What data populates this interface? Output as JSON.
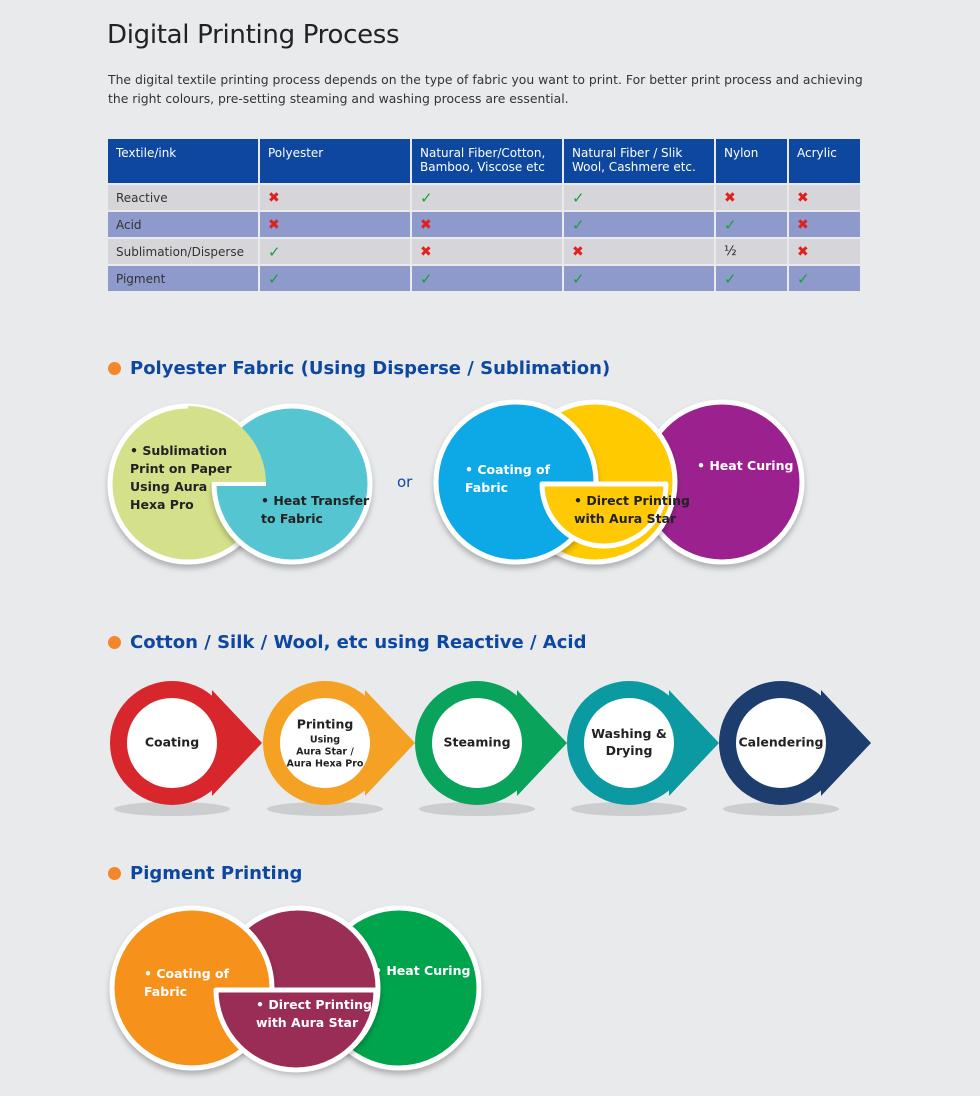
{
  "title": "Digital Printing Process",
  "intro": "The digital textile printing process depends on the type of fabric you want to print. For better print process and achieving the right colours, pre-setting steaming and washing process are essential.",
  "table": {
    "headers": [
      "Textile/ink",
      "Polyester",
      "Natural Fiber/Cotton, Bamboo, Viscose etc",
      "Natural Fiber / Slik Wool, Cashmere etc.",
      "Nylon",
      "Acrylic"
    ],
    "rows": [
      {
        "label": "Reactive",
        "cells": [
          "no",
          "yes",
          "yes",
          "no",
          "no"
        ]
      },
      {
        "label": "Acid",
        "cells": [
          "no",
          "no",
          "yes",
          "yes",
          "no"
        ]
      },
      {
        "label": "Sublimation/Disperse",
        "cells": [
          "yes",
          "no",
          "no",
          "half",
          "no"
        ]
      },
      {
        "label": "Pigment",
        "cells": [
          "yes",
          "yes",
          "yes",
          "yes",
          "yes"
        ]
      }
    ],
    "symbols": {
      "yes": "✓",
      "no": "✖",
      "half": "½"
    }
  },
  "section1": {
    "heading": "Polyester Fabric (Using Disperse / Sublimation)",
    "or_label": "or",
    "option_a": {
      "step1": [
        "• Sublimation",
        "Print on Paper",
        "Using Aura",
        "Hexa Pro"
      ],
      "step2": [
        "• Heat Transfer",
        "to Fabric"
      ],
      "colors": [
        "#d5e08a",
        "#55c5d2"
      ]
    },
    "option_b": {
      "step1": [
        "• Coating of",
        "Fabric"
      ],
      "step2": [
        "• Direct Printing",
        "with Aura Star"
      ],
      "step3": [
        "• Heat Curing"
      ],
      "colors": [
        "#0aa8e6",
        "#ffca05",
        "#9b208e"
      ]
    }
  },
  "section2": {
    "heading": "Cotton / Silk / Wool, etc using Reactive / Acid",
    "steps": [
      {
        "lines": [
          "Coating"
        ],
        "small": [],
        "color": "#d7262c"
      },
      {
        "lines": [
          "Printing"
        ],
        "small": [
          "Using",
          "Aura Star /",
          "Aura Hexa Pro"
        ],
        "color": "#f4a124"
      },
      {
        "lines": [
          "Steaming"
        ],
        "small": [],
        "color": "#0aa35b"
      },
      {
        "lines": [
          "Washing &",
          "Drying"
        ],
        "small": [],
        "color": "#0b9aa2"
      },
      {
        "lines": [
          "Calendering"
        ],
        "small": [],
        "color": "#1d3d6f"
      }
    ]
  },
  "section3": {
    "heading": "Pigment Printing",
    "step1": [
      "• Coating of",
      "Fabric"
    ],
    "step2": [
      "• Direct Printing",
      "with Aura Star"
    ],
    "step3": [
      "• Heat Curing"
    ],
    "colors": [
      "#f6921e",
      "#9a2d55",
      "#00a44d"
    ]
  }
}
